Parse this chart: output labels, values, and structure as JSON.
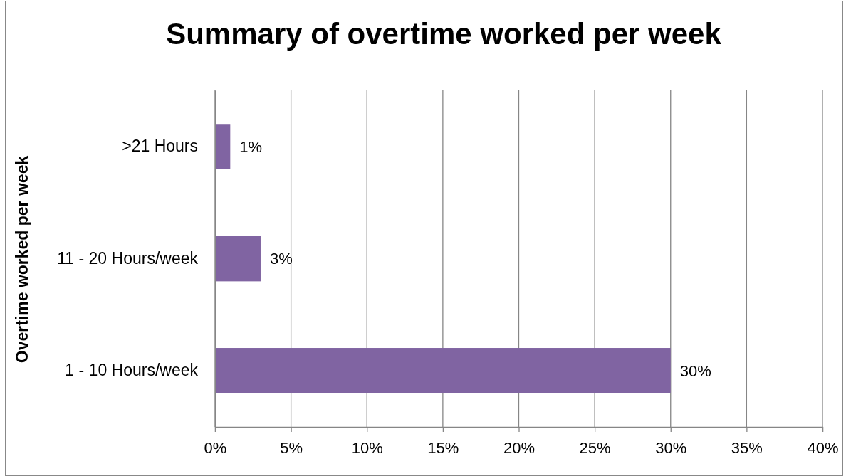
{
  "chart_data": {
    "type": "bar",
    "orientation": "horizontal",
    "title": "Summary of overtime worked per week",
    "ylabel": "Overtime worked per week",
    "categories": [
      ">21 Hours",
      "11 - 20 Hours/week",
      "1 - 10 Hours/week"
    ],
    "values": [
      1,
      3,
      30
    ],
    "value_labels": [
      "1%",
      "3%",
      "30%"
    ],
    "color": "#8064a2",
    "xlim": [
      0,
      40
    ],
    "xticks": [
      {
        "value": 0,
        "label": "0%"
      },
      {
        "value": 5,
        "label": "5%"
      },
      {
        "value": 10,
        "label": "10%"
      },
      {
        "value": 15,
        "label": "15%"
      },
      {
        "value": 20,
        "label": "20%"
      },
      {
        "value": 25,
        "label": "25%"
      },
      {
        "value": 30,
        "label": "30%"
      },
      {
        "value": 35,
        "label": "35%"
      },
      {
        "value": 40,
        "label": "40%"
      }
    ],
    "grid": "x"
  }
}
